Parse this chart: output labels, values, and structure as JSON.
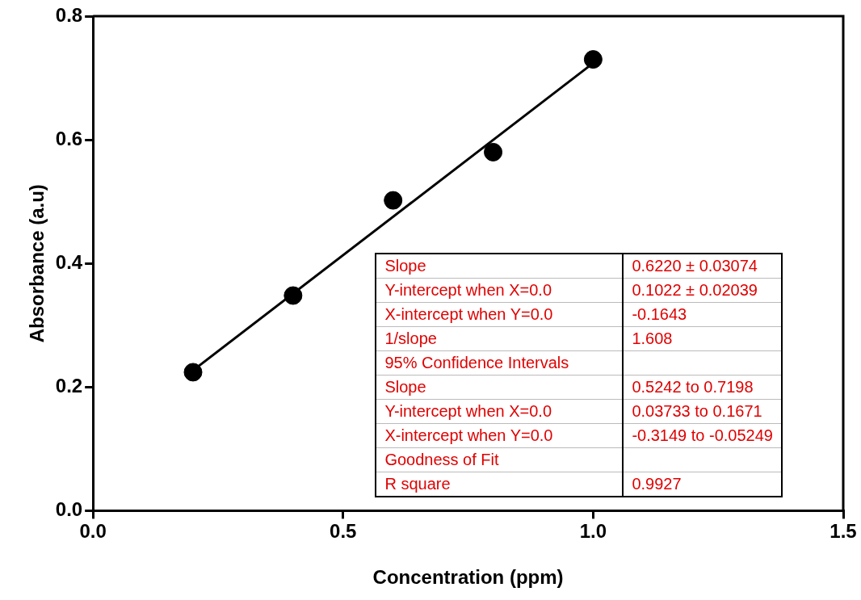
{
  "chart_data": {
    "type": "scatter",
    "xlabel": "Concentration (ppm)",
    "ylabel": "Absorbance (a.u)",
    "xlim": [
      0,
      1.5
    ],
    "xticks": [
      {
        "value": 0,
        "label": "0.0"
      },
      0.5,
      {
        "value": 1,
        "label": "1.0"
      },
      1.5
    ],
    "ylim": [
      0,
      0.8
    ],
    "yticks": [
      {
        "value": 0,
        "label": "0.0"
      },
      0.2,
      0.4,
      0.6,
      0.8
    ],
    "grid": false,
    "legend": false,
    "marker": "circle",
    "series": [
      {
        "color": "#000000",
        "x": [
          0.2,
          0.4,
          0.6,
          0.8,
          1.0
        ],
        "values": [
          0.224,
          0.348,
          0.502,
          0.58,
          0.73
        ]
      },
      {
        "type": "line",
        "color": "#000000",
        "marker": "none",
        "x": [
          0.2,
          1.0
        ],
        "values": [
          0.227,
          0.724
        ]
      }
    ],
    "annotations": [
      "Slope",
      "0.6220 ± 0.03074",
      "Y-intercept when X=0.0",
      "0.1022 ± 0.02039",
      "X-intercept when Y=0.0",
      "-0.1643",
      "1/slope",
      "1.608",
      "95% Confidence Intervals",
      null,
      "Slope",
      "0.5242 to 0.7198",
      "Y-intercept when X=0.0",
      "0.03733 to 0.1671",
      "X-intercept when Y=0.0",
      "-0.3149 to -0.05249",
      "Goodness of Fit",
      null,
      "R square",
      "0.9927"
    ]
  }
}
